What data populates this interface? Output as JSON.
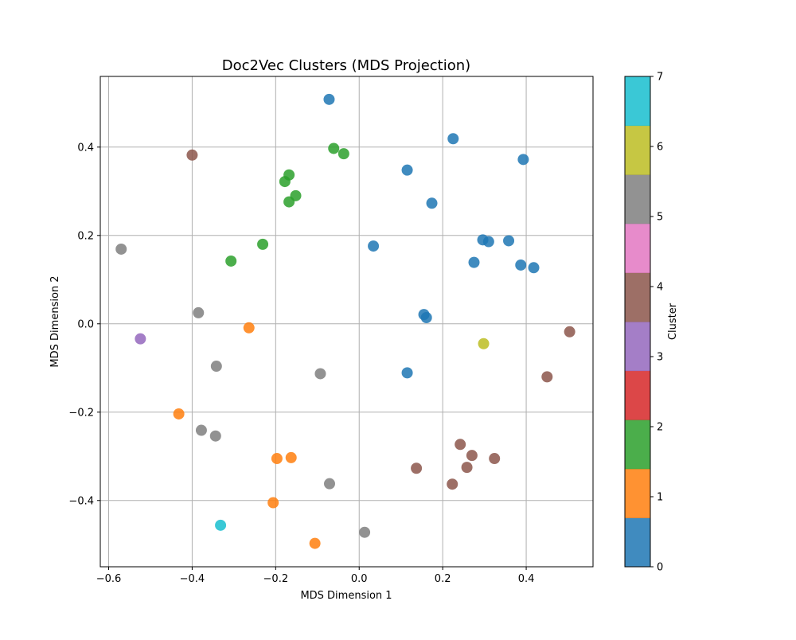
{
  "chart_data": {
    "type": "scatter",
    "title": "Doc2Vec Clusters (MDS Projection)",
    "xlabel": "MDS Dimension 1",
    "ylabel": "MDS Dimension 2",
    "xlim": [
      -0.62,
      0.56
    ],
    "ylim": [
      -0.55,
      0.56
    ],
    "grid": true,
    "x_ticks": [
      -0.6,
      -0.4,
      -0.2,
      0.0,
      0.2,
      0.4
    ],
    "x_tick_labels": [
      "−0.6",
      "−0.4",
      "−0.2",
      "0.0",
      "0.2",
      "0.4"
    ],
    "y_ticks": [
      -0.4,
      -0.2,
      0.0,
      0.2,
      0.4
    ],
    "y_tick_labels": [
      "−0.4",
      "−0.2",
      "0.0",
      "0.2",
      "0.4"
    ],
    "colorbar": {
      "label": "Cluster",
      "ticks": [
        0,
        1,
        2,
        3,
        4,
        5,
        6,
        7
      ],
      "tick_labels": [
        "0",
        "1",
        "2",
        "3",
        "4",
        "5",
        "6",
        "7"
      ],
      "colors": [
        "#1f77b4",
        "#ff7f0e",
        "#2ca02c",
        "#d62728",
        "#9467bd",
        "#8c564b",
        "#e377c2",
        "#7f7f7f",
        "#bcbd22",
        "#17becf"
      ]
    },
    "points": [
      {
        "x": -0.072,
        "y": 0.508,
        "cluster": 0
      },
      {
        "x": 0.225,
        "y": 0.419,
        "cluster": 0
      },
      {
        "x": 0.393,
        "y": 0.372,
        "cluster": 0
      },
      {
        "x": 0.115,
        "y": 0.348,
        "cluster": 0
      },
      {
        "x": 0.174,
        "y": 0.273,
        "cluster": 0
      },
      {
        "x": 0.034,
        "y": 0.176,
        "cluster": 0
      },
      {
        "x": 0.296,
        "y": 0.19,
        "cluster": 0
      },
      {
        "x": 0.31,
        "y": 0.186,
        "cluster": 0
      },
      {
        "x": 0.358,
        "y": 0.188,
        "cluster": 0
      },
      {
        "x": 0.275,
        "y": 0.139,
        "cluster": 0
      },
      {
        "x": 0.387,
        "y": 0.133,
        "cluster": 0
      },
      {
        "x": 0.418,
        "y": 0.127,
        "cluster": 0
      },
      {
        "x": 0.155,
        "y": 0.021,
        "cluster": 0
      },
      {
        "x": 0.161,
        "y": 0.014,
        "cluster": 0
      },
      {
        "x": 0.115,
        "y": -0.111,
        "cluster": 0
      },
      {
        "x": -0.264,
        "y": -0.009,
        "cluster": 1
      },
      {
        "x": -0.432,
        "y": -0.204,
        "cluster": 1
      },
      {
        "x": -0.197,
        "y": -0.305,
        "cluster": 1
      },
      {
        "x": -0.163,
        "y": -0.303,
        "cluster": 1
      },
      {
        "x": -0.206,
        "y": -0.405,
        "cluster": 1
      },
      {
        "x": -0.106,
        "y": -0.497,
        "cluster": 1
      },
      {
        "x": -0.061,
        "y": 0.397,
        "cluster": 2
      },
      {
        "x": -0.037,
        "y": 0.385,
        "cluster": 2
      },
      {
        "x": -0.168,
        "y": 0.337,
        "cluster": 2
      },
      {
        "x": -0.178,
        "y": 0.322,
        "cluster": 2
      },
      {
        "x": -0.152,
        "y": 0.29,
        "cluster": 2
      },
      {
        "x": -0.168,
        "y": 0.276,
        "cluster": 2
      },
      {
        "x": -0.231,
        "y": 0.18,
        "cluster": 2
      },
      {
        "x": -0.307,
        "y": 0.142,
        "cluster": 2
      },
      {
        "x": -0.524,
        "y": -0.034,
        "cluster": 3
      },
      {
        "x": -0.4,
        "y": 0.382,
        "cluster": 4
      },
      {
        "x": 0.504,
        "y": -0.018,
        "cluster": 4
      },
      {
        "x": 0.45,
        "y": -0.12,
        "cluster": 4
      },
      {
        "x": 0.242,
        "y": -0.273,
        "cluster": 4
      },
      {
        "x": 0.27,
        "y": -0.298,
        "cluster": 4
      },
      {
        "x": 0.324,
        "y": -0.305,
        "cluster": 4
      },
      {
        "x": 0.258,
        "y": -0.325,
        "cluster": 4
      },
      {
        "x": 0.137,
        "y": -0.327,
        "cluster": 4
      },
      {
        "x": 0.223,
        "y": -0.363,
        "cluster": 4
      },
      {
        "x": -0.57,
        "y": 0.169,
        "cluster": 5
      },
      {
        "x": -0.385,
        "y": 0.025,
        "cluster": 5
      },
      {
        "x": -0.342,
        "y": -0.096,
        "cluster": 5
      },
      {
        "x": -0.093,
        "y": -0.113,
        "cluster": 5
      },
      {
        "x": -0.378,
        "y": -0.241,
        "cluster": 5
      },
      {
        "x": -0.344,
        "y": -0.254,
        "cluster": 5
      },
      {
        "x": -0.071,
        "y": -0.362,
        "cluster": 5
      },
      {
        "x": 0.013,
        "y": -0.472,
        "cluster": 5
      },
      {
        "x": 0.298,
        "y": -0.045,
        "cluster": 6
      },
      {
        "x": -0.332,
        "y": -0.456,
        "cluster": 7
      }
    ]
  }
}
